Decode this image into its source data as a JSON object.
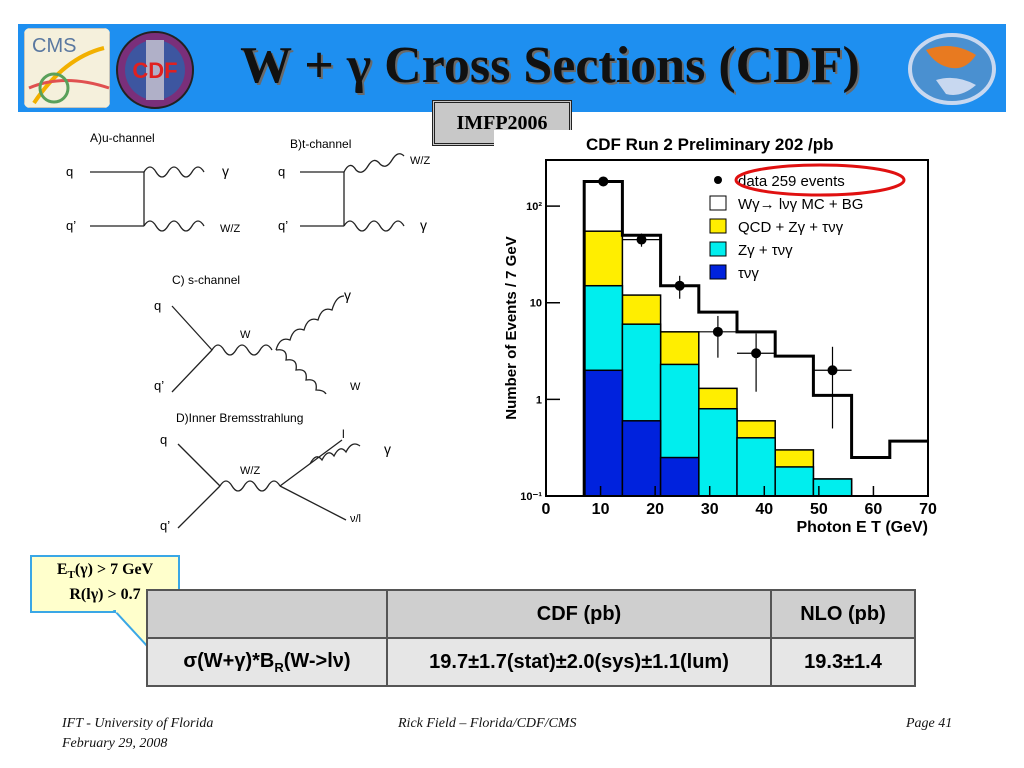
{
  "slide": {
    "title": "W + γ Cross Sections (CDF)",
    "badge": "IMFP2006"
  },
  "logos": {
    "cms": "CMS",
    "cdf": "CDF"
  },
  "diagrams": {
    "a": {
      "label": "A)u-channel",
      "q": "q",
      "qprime": "q’",
      "gamma": "γ",
      "boson": "W/Z"
    },
    "b": {
      "label": "B)t-channel",
      "q": "q",
      "qprime": "q’",
      "gamma": "γ",
      "boson": "W/Z"
    },
    "c": {
      "label": "C) s-channel",
      "q": "q",
      "qprime": "q’",
      "w_mid": "W",
      "gamma": "γ",
      "w_out": "W"
    },
    "d": {
      "label": "D)Inner Bremsstrahlung",
      "q": "q",
      "qprime": "q’",
      "wz": "W/Z",
      "l": "l",
      "gamma": "γ",
      "nu": "ν/l"
    }
  },
  "chart_data": {
    "type": "bar",
    "title": "CDF Run 2 Preliminary 202 /pb",
    "xlabel": "Photon E T (GeV)",
    "ylabel": "Number of Events / 7 GeV",
    "xlim": [
      0,
      70
    ],
    "ylim": [
      0.1,
      300
    ],
    "yscale": "log",
    "x_ticks": [
      "0",
      "10",
      "20",
      "30",
      "40",
      "50",
      "60",
      "70"
    ],
    "y_ticks": [
      "10⁻¹",
      "1",
      "10",
      "10²"
    ],
    "bin_edges": [
      7,
      14,
      21,
      28,
      35,
      42,
      49,
      56,
      63,
      70
    ],
    "series": [
      {
        "name": "Wγ→ lνγ MC + BG",
        "values": [
          180,
          50,
          15,
          8,
          5,
          2.8,
          1.1,
          0.25,
          0.37
        ],
        "color": "#ffffff",
        "style": "line"
      },
      {
        "name": "QCD + Zγ + τνγ",
        "values": [
          55,
          12,
          5,
          1.3,
          0.6,
          0.3,
          0.15,
          0.1,
          0.1
        ],
        "color": "#ffee00"
      },
      {
        "name": "Zγ + τνγ",
        "values": [
          15,
          6,
          2.3,
          0.8,
          0.4,
          0.2,
          0.15,
          0.1,
          0.1
        ],
        "color": "#00eeee"
      },
      {
        "name": "τνγ",
        "values": [
          2,
          0.6,
          0.25,
          0.1,
          0.1,
          0.1,
          0.1,
          0.1,
          0.1
        ],
        "color": "#0022dd"
      }
    ],
    "points": {
      "name": "data 259 events",
      "x": [
        10.5,
        17.5,
        24.5,
        31.5,
        38.5,
        52.5
      ],
      "y": [
        180,
        45,
        15,
        5,
        3,
        2
      ],
      "yerr": [
        14,
        7,
        4,
        2.3,
        1.8,
        1.5
      ]
    },
    "legend_position": "top-right"
  },
  "callout": {
    "line1": "E",
    "line1_sub": "T",
    "line1_rest": "(γ) > 7 GeV",
    "line2": "R(lγ) > 0.7"
  },
  "table": {
    "headers": [
      "",
      "CDF (pb)",
      "NLO (pb)"
    ],
    "row_label": "σ(W+γ)*B",
    "row_label_sub": "R",
    "row_label_rest": "(W->lν)",
    "cdf_value": "19.7±1.7(stat)±2.0(sys)±1.1(lum)",
    "nlo_value": "19.3±1.4"
  },
  "footer": {
    "left1": "IFT - University of Florida",
    "left2": "February 29, 2008",
    "center": "Rick Field – Florida/CDF/CMS",
    "right": "Page 41"
  },
  "colors": {
    "title_bar": "#1e8ff0",
    "highlight_ellipse": "#e01010"
  }
}
